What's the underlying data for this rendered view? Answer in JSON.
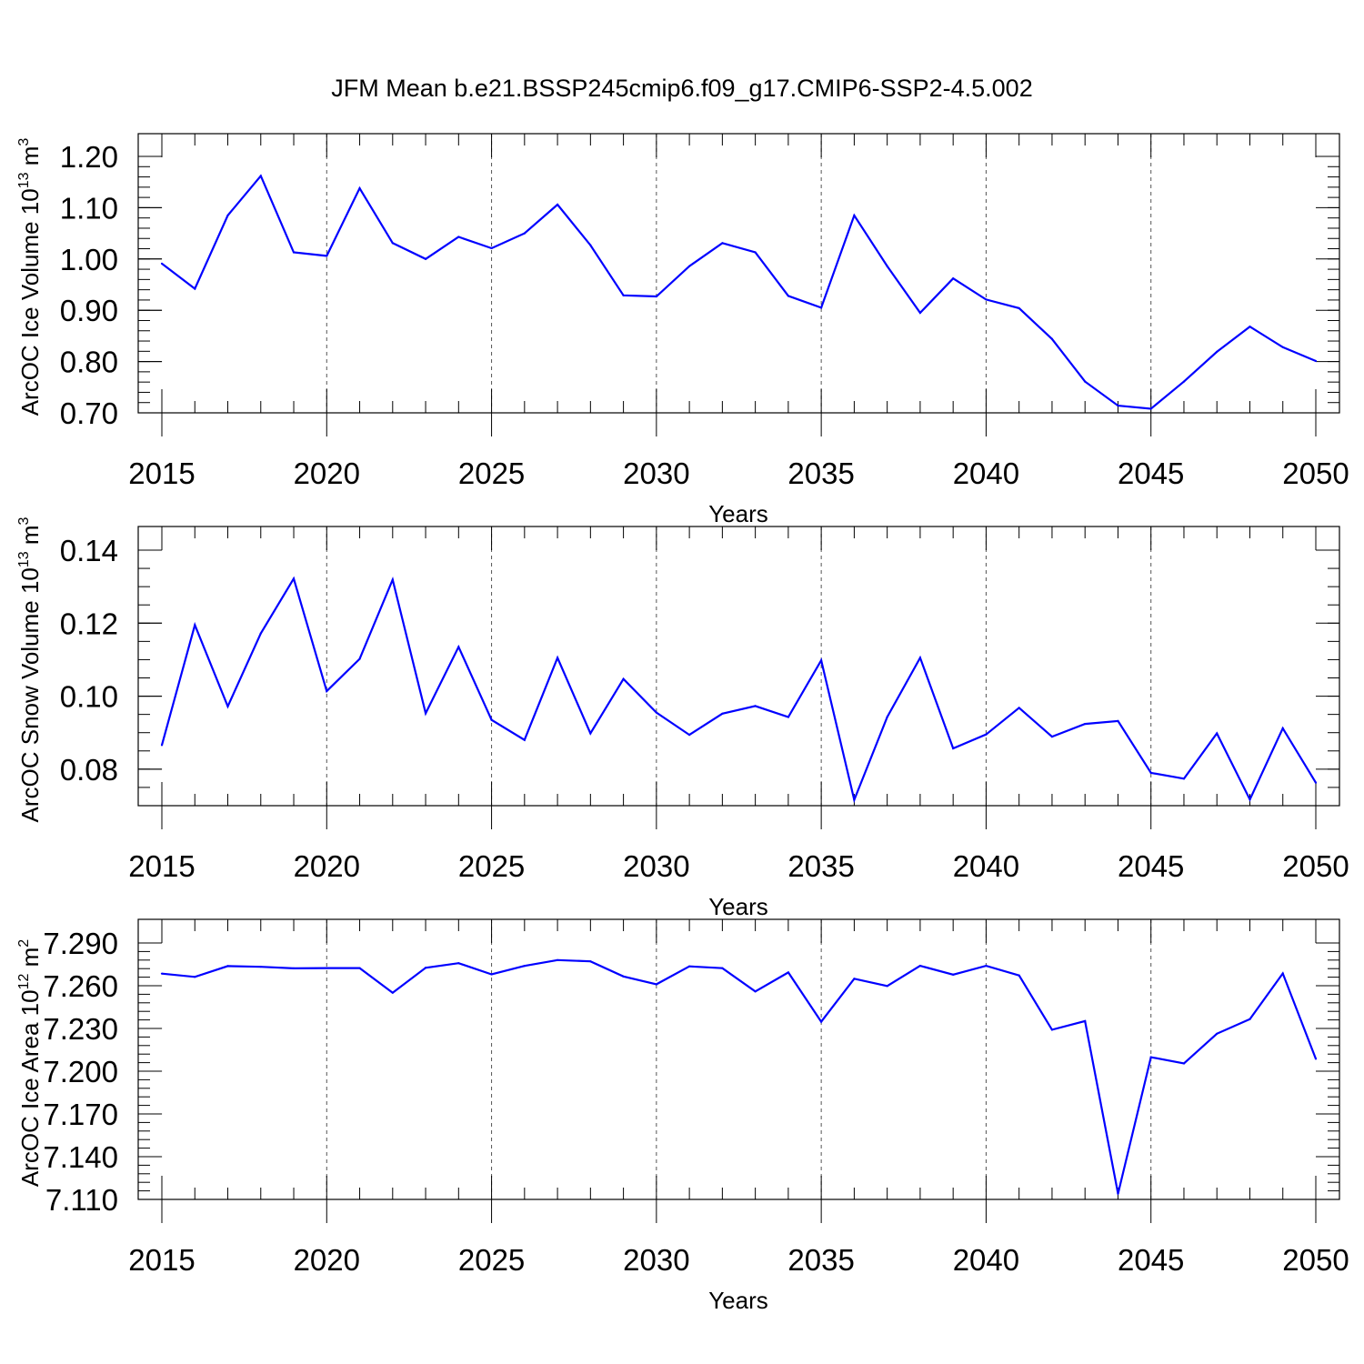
{
  "figure": {
    "title": "JFM Mean b.e21.BSSP245cmip6.f09_g17.CMIP6-SSP2-4.5.002",
    "series_color": "#0000ff"
  },
  "chart_data": [
    {
      "type": "line",
      "xlabel": "Years",
      "ylabel": "ArcOC Ice Volume 10",
      "ylabel_exponent": "13",
      "ylabel_unit": "m",
      "ylabel_unit_exponent": "3",
      "xlim": [
        2015,
        2050
      ],
      "ylim": [
        0.7,
        1.2
      ],
      "x_ticks": [
        2015,
        2020,
        2025,
        2030,
        2035,
        2040,
        2045,
        2050
      ],
      "x_tick_labels": [
        "2015",
        "2020",
        "2025",
        "2030",
        "2035",
        "2040",
        "2045",
        "2050"
      ],
      "y_ticks": [
        0.7,
        0.8,
        0.9,
        1.0,
        1.1,
        1.2
      ],
      "y_tick_labels": [
        "0.70",
        "0.80",
        "0.90",
        "1.00",
        "1.10",
        "1.20"
      ],
      "x_minor_step": 1,
      "y_minor_step": 0.02,
      "grid": "x-major-dashed",
      "x": [
        2015,
        2016,
        2017,
        2018,
        2019,
        2020,
        2021,
        2022,
        2023,
        2024,
        2025,
        2026,
        2027,
        2028,
        2029,
        2030,
        2031,
        2032,
        2033,
        2034,
        2035,
        2036,
        2037,
        2038,
        2039,
        2040,
        2041,
        2042,
        2043,
        2044,
        2045,
        2046,
        2047,
        2048,
        2049,
        2050
      ],
      "series": [
        {
          "values": [
            0.991,
            0.942,
            1.085,
            1.162,
            1.013,
            1.006,
            1.138,
            1.031,
            1.0,
            1.043,
            1.021,
            1.05,
            1.106,
            1.027,
            0.929,
            0.927,
            0.986,
            1.031,
            1.013,
            0.928,
            0.905,
            1.085,
            0.986,
            0.895,
            0.962,
            0.921,
            0.904,
            0.844,
            0.761,
            0.714,
            0.708,
            0.761,
            0.819,
            0.868,
            0.828,
            0.801
          ]
        }
      ]
    },
    {
      "type": "line",
      "xlabel": "Years",
      "ylabel": "ArcOC Snow Volume 10",
      "ylabel_exponent": "13",
      "ylabel_unit": "m",
      "ylabel_unit_exponent": "3",
      "xlim": [
        2015,
        2050
      ],
      "ylim": [
        0.07,
        0.14
      ],
      "x_ticks": [
        2015,
        2020,
        2025,
        2030,
        2035,
        2040,
        2045,
        2050
      ],
      "x_tick_labels": [
        "2015",
        "2020",
        "2025",
        "2030",
        "2035",
        "2040",
        "2045",
        "2050"
      ],
      "y_ticks": [
        0.08,
        0.1,
        0.12,
        0.14
      ],
      "y_tick_labels": [
        "0.08",
        "0.10",
        "0.12",
        "0.14"
      ],
      "x_minor_step": 1,
      "y_minor_step": 0.005,
      "grid": "x-major-dashed",
      "x": [
        2015,
        2016,
        2017,
        2018,
        2019,
        2020,
        2021,
        2022,
        2023,
        2024,
        2025,
        2026,
        2027,
        2028,
        2029,
        2030,
        2031,
        2032,
        2033,
        2034,
        2035,
        2036,
        2037,
        2038,
        2039,
        2040,
        2041,
        2042,
        2043,
        2044,
        2045,
        2046,
        2047,
        2048,
        2049,
        2050
      ],
      "series": [
        {
          "values": [
            0.0866,
            0.1195,
            0.0972,
            0.1172,
            0.1322,
            0.1014,
            0.1102,
            0.1319,
            0.0953,
            0.1135,
            0.0935,
            0.088,
            0.1105,
            0.0898,
            0.1047,
            0.0955,
            0.0894,
            0.0952,
            0.0973,
            0.0943,
            0.1098,
            0.0716,
            0.0943,
            0.1105,
            0.0857,
            0.0895,
            0.0968,
            0.0889,
            0.0924,
            0.0932,
            0.079,
            0.0774,
            0.0898,
            0.0717,
            0.0912,
            0.0763
          ]
        }
      ]
    },
    {
      "type": "line",
      "xlabel": "Years",
      "ylabel": "ArcOC Ice Area 10",
      "ylabel_exponent": "12",
      "ylabel_unit": "m",
      "ylabel_unit_exponent": "2",
      "xlim": [
        2015,
        2050
      ],
      "ylim": [
        7.11,
        7.29
      ],
      "x_ticks": [
        2015,
        2020,
        2025,
        2030,
        2035,
        2040,
        2045,
        2050
      ],
      "x_tick_labels": [
        "2015",
        "2020",
        "2025",
        "2030",
        "2035",
        "2040",
        "2045",
        "2050"
      ],
      "y_ticks": [
        7.11,
        7.14,
        7.17,
        7.2,
        7.23,
        7.26,
        7.29
      ],
      "y_tick_labels": [
        "7.110",
        "7.140",
        "7.170",
        "7.200",
        "7.230",
        "7.260",
        "7.290"
      ],
      "x_minor_step": 1,
      "y_minor_step": 0.006,
      "grid": "x-major-dashed",
      "x": [
        2015,
        2016,
        2017,
        2018,
        2019,
        2020,
        2021,
        2022,
        2023,
        2024,
        2025,
        2026,
        2027,
        2028,
        2029,
        2030,
        2031,
        2032,
        2033,
        2034,
        2035,
        2036,
        2037,
        2038,
        2039,
        2040,
        2041,
        2042,
        2043,
        2044,
        2045,
        2046,
        2047,
        2048,
        2049,
        2050
      ],
      "series": [
        {
          "values": [
            7.2685,
            7.2662,
            7.2738,
            7.2733,
            7.2722,
            7.2724,
            7.2724,
            7.2551,
            7.2726,
            7.2758,
            7.268,
            7.2739,
            7.278,
            7.2771,
            7.2665,
            7.261,
            7.2736,
            7.2723,
            7.256,
            7.2693,
            7.2347,
            7.2649,
            7.2598,
            7.274,
            7.2678,
            7.274,
            7.2672,
            7.2291,
            7.2352,
            7.114,
            7.2098,
            7.2054,
            7.2263,
            7.2365,
            7.2686,
            7.2087
          ]
        }
      ]
    }
  ]
}
